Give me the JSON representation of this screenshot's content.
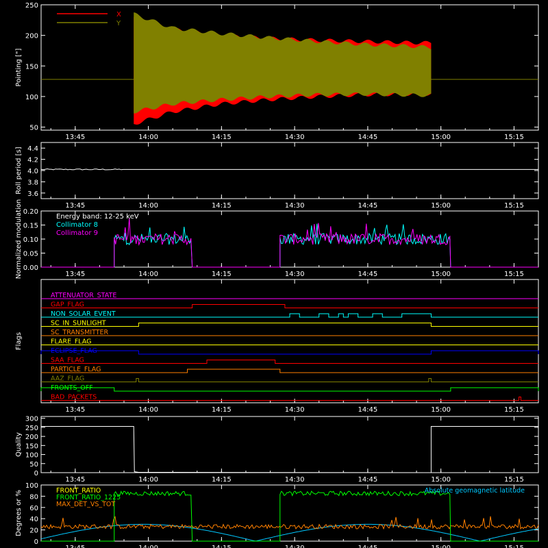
{
  "colors": {
    "background": "#000000",
    "axes": "#ffffff",
    "x_pointing": "#ff0000",
    "y_pointing": "#808000",
    "collimator8": "#00ffff",
    "collimator9": "#ff00ff",
    "front_ratio": "#ffff00",
    "front_ratio_1225": "#00ff00",
    "max_det": "#ff8000",
    "geomag": "#00c8ff"
  },
  "time_ticks": [
    "13:45",
    "14:00",
    "14:15",
    "14:30",
    "14:45",
    "15:00",
    "15:15"
  ],
  "chart_data": [
    {
      "type": "area",
      "ylabel": "Pointing [\"]",
      "ylim": [
        45,
        250
      ],
      "yticks": [
        "50",
        "100",
        "150",
        "200",
        "250"
      ],
      "legend_placement": "top-left",
      "series": [
        {
          "name": "X",
          "color": "#ff0000",
          "description_min": [
            55,
            75,
            88,
            95,
            100,
            103,
            104,
            104
          ],
          "description_max": [
            230,
            210,
            200,
            195,
            192,
            190,
            188,
            188
          ]
        },
        {
          "name": "Y",
          "color": "#808000",
          "description_min": [
            75,
            88,
            95,
            100,
            103,
            104,
            102,
            102
          ],
          "description_max": [
            235,
            212,
            203,
            196,
            190,
            185,
            182,
            180
          ]
        }
      ],
      "x_times": [
        "13:57",
        "14:05",
        "14:15",
        "14:25",
        "14:35",
        "14:45",
        "14:55",
        "14:58"
      ],
      "baseline_value": 128
    },
    {
      "type": "line",
      "ylabel": "Roll period [s]",
      "ylim": [
        3.5,
        4.5
      ],
      "yticks": [
        "3.6",
        "3.8",
        "4.0",
        "4.2",
        "4.4"
      ],
      "series": [
        {
          "name": "",
          "values_constant": 4.02
        }
      ]
    },
    {
      "type": "line",
      "ylabel": "Normalized modulation",
      "ylim": [
        0,
        0.2
      ],
      "yticks": [
        "0.00",
        "0.05",
        "0.10",
        "0.15",
        "0.20"
      ],
      "annotation": "Energy band: 12-25 keV",
      "series": [
        {
          "name": "Collimator 8",
          "color": "#00ffff"
        },
        {
          "name": "Collimator 9",
          "color": "#ff00ff"
        }
      ],
      "active_intervals": [
        [
          "13:53",
          "14:09"
        ],
        [
          "14:27",
          "15:02"
        ]
      ],
      "level": 0.1
    },
    {
      "type": "line",
      "ylabel": "Flags",
      "flags": [
        {
          "name": "ATTENUATOR_STATE",
          "color": "#ff00ff"
        },
        {
          "name": "GAP_FLAG",
          "color": "#ff0000"
        },
        {
          "name": "NON_SOLAR_EVENT",
          "color": "#00ffff"
        },
        {
          "name": "SC_IN_SUNLIGHT",
          "color": "#ffff00"
        },
        {
          "name": "SC_TRANSMITTER",
          "color": "#ff8000"
        },
        {
          "name": "FLARE_FLAG",
          "color": "#ffff00"
        },
        {
          "name": "ECLIPSE_FLAG",
          "color": "#0000ff"
        },
        {
          "name": "SAA_FLAG",
          "color": "#ff0000"
        },
        {
          "name": "PARTICLE_FLAG",
          "color": "#ff8000"
        },
        {
          "name": "AAZ_FLAG",
          "color": "#808000"
        },
        {
          "name": "FRONTS_OFF",
          "color": "#00ff00"
        },
        {
          "name": "BAD_PACKETS",
          "color": "#ff0000"
        }
      ]
    },
    {
      "type": "line",
      "ylabel": "Quality",
      "ylim": [
        0,
        310
      ],
      "yticks": [
        "0",
        "50",
        "100",
        "150",
        "200",
        "250",
        "300"
      ],
      "series": [
        {
          "name": "",
          "high_value": 255,
          "low_value": 0
        }
      ]
    },
    {
      "type": "line",
      "ylabel": "Degrees or %",
      "ylim": [
        0,
        100
      ],
      "yticks": [
        "0",
        "20",
        "40",
        "60",
        "80",
        "100"
      ],
      "series": [
        {
          "name": "FRONT_RATIO",
          "color": "#ffff00"
        },
        {
          "name": "FRONT_RATIO_1225",
          "color": "#00ff00",
          "level": 85
        },
        {
          "name": "MAX_DET_VS_TOT",
          "color": "#ff8000",
          "level": 27
        },
        {
          "name": "Absolute geomagnetic latitude",
          "color": "#00c8ff"
        }
      ]
    }
  ]
}
